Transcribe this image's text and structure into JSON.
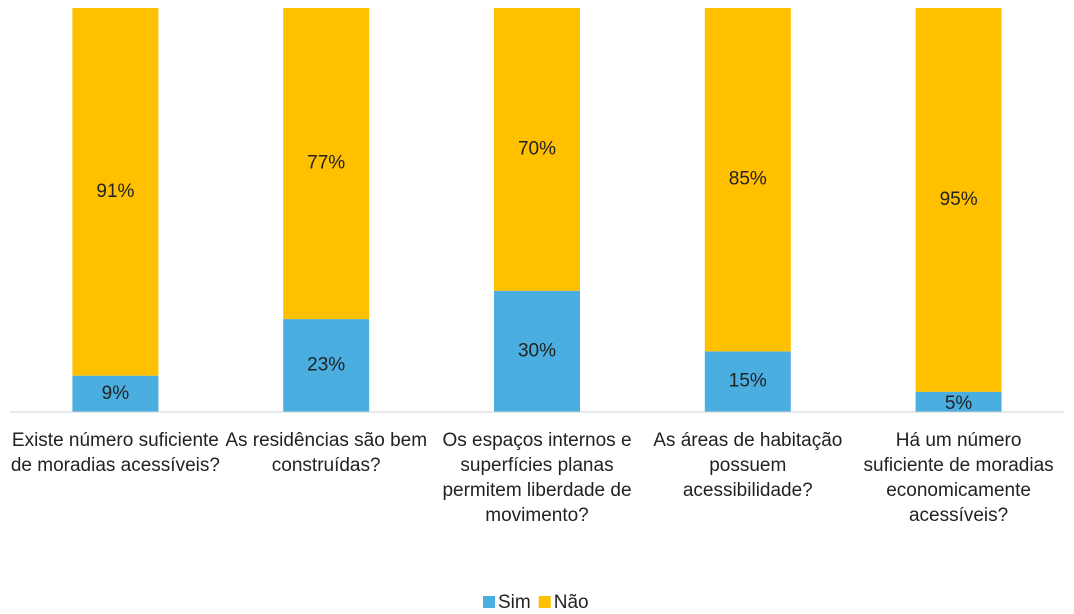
{
  "chart_data": {
    "type": "stacked_bar",
    "categories": [
      "Existe número suficiente de moradias acessíveis?",
      "As residências são bem construídas?",
      "Os espaços internos e superfícies planas permitem liberdade de movimento?",
      "As áreas de habitação possuem acessibilidade?",
      "Há um número suficiente de moradias economicamente acessíveis?"
    ],
    "series": [
      {
        "name": "Sim",
        "color": "#4BAEE0",
        "values": [
          9,
          23,
          30,
          15,
          5
        ],
        "value_labels": [
          "9%",
          "23%",
          "30%",
          "15%",
          "5%"
        ]
      },
      {
        "name": "Não",
        "color": "#FFC000",
        "values": [
          91,
          77,
          70,
          85,
          95
        ],
        "value_labels": [
          "91%",
          "77%",
          "70%",
          "85%",
          "95%"
        ]
      }
    ],
    "ylim": [
      0,
      100
    ],
    "legend": "bottom"
  }
}
